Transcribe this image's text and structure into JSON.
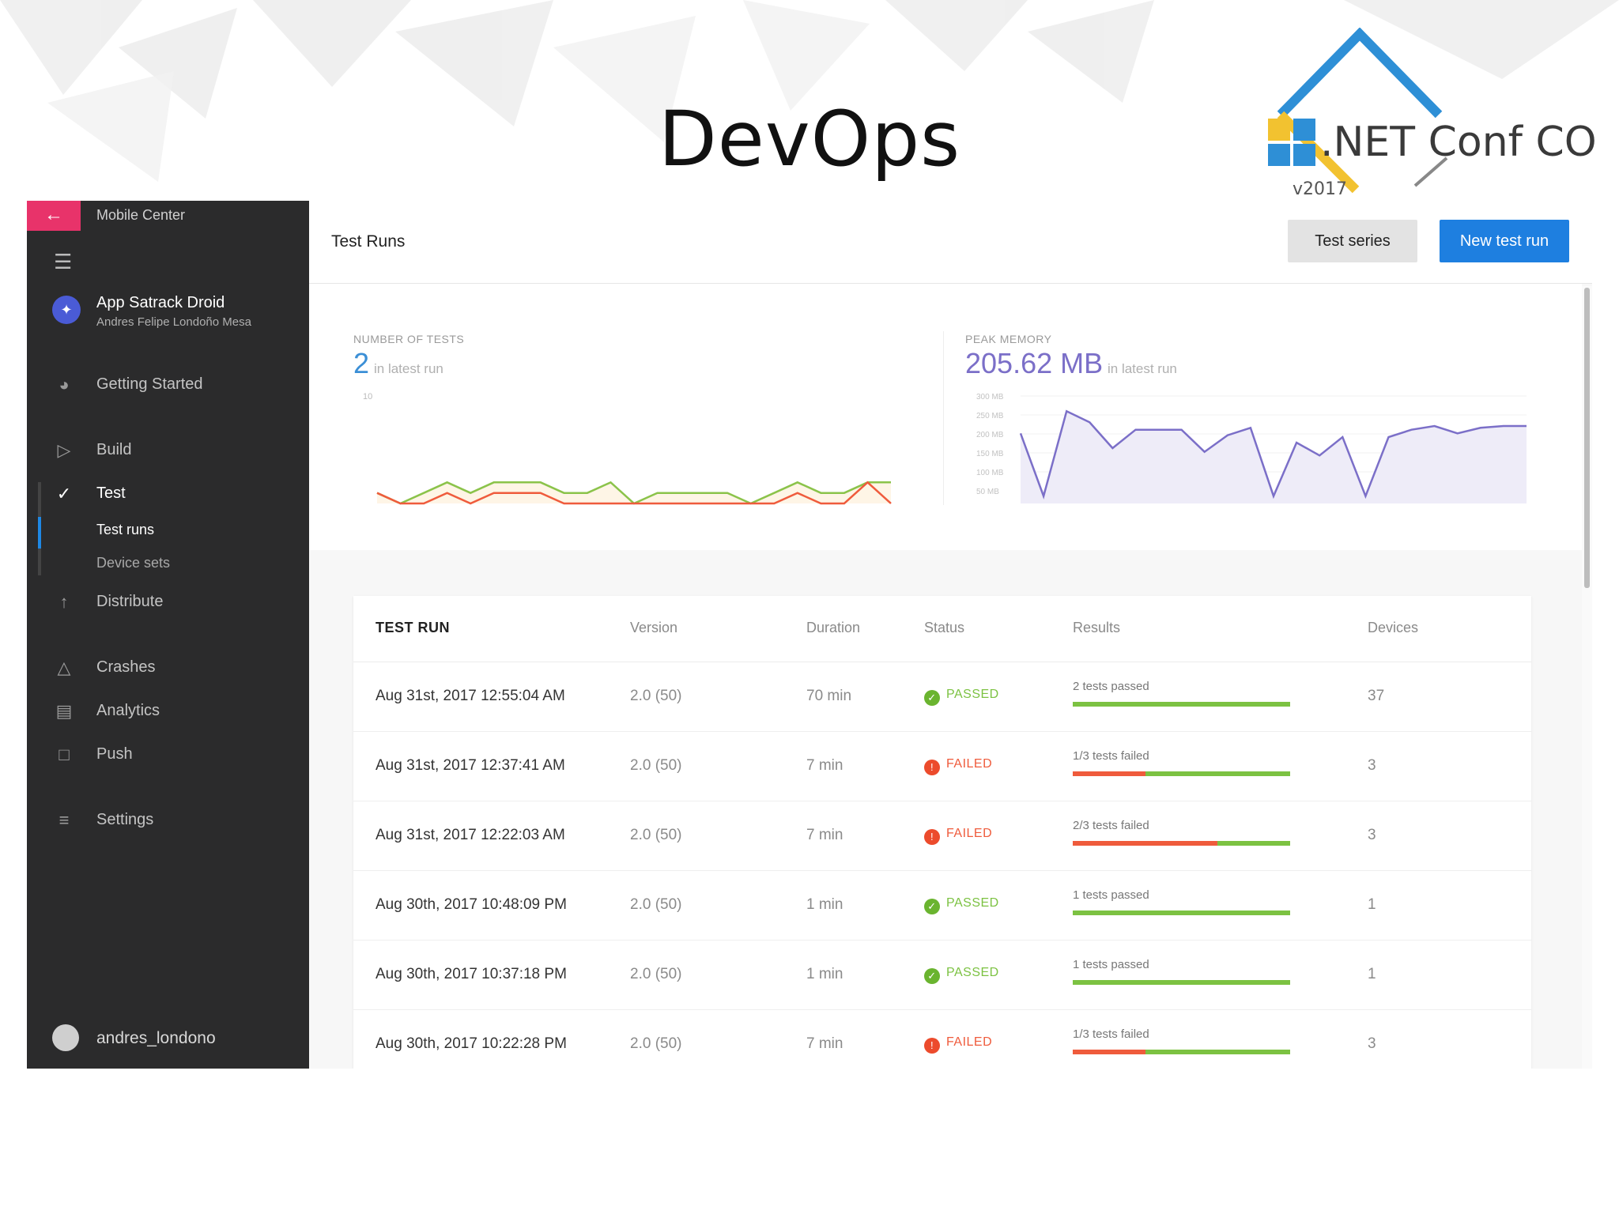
{
  "slide": {
    "title": "DevOps",
    "logo_text": ".NET Conf CO",
    "logo_version": "v2017"
  },
  "sidebar": {
    "back_icon": "arrow-left-icon",
    "brand": "Mobile Center",
    "app_name": "App Satrack Droid",
    "app_owner": "Andres Felipe Londoño Mesa",
    "items": [
      {
        "label": "Getting Started",
        "icon": "speedometer-icon"
      },
      {
        "label": "Build",
        "icon": "play-icon"
      },
      {
        "label": "Test",
        "icon": "check-circle-icon"
      },
      {
        "label": "Distribute",
        "icon": "distribute-icon"
      },
      {
        "label": "Crashes",
        "icon": "warning-icon"
      },
      {
        "label": "Analytics",
        "icon": "bar-chart-icon"
      },
      {
        "label": "Push",
        "icon": "push-icon"
      },
      {
        "label": "Settings",
        "icon": "sliders-icon"
      }
    ],
    "sub_items": [
      "Test runs",
      "Device sets"
    ],
    "user": "andres_londono",
    "accent_color": "#e8336a"
  },
  "header": {
    "title": "Test Runs",
    "series_button": "Test series",
    "new_button": "New test run",
    "primary_color": "#1e7fe0"
  },
  "stats": {
    "tests": {
      "label": "NUMBER OF TESTS",
      "value": "2",
      "sub": "in latest run",
      "color": "#3b8fd6",
      "axis_label": "10"
    },
    "memory": {
      "label": "PEAK MEMORY",
      "value": "205.62 MB",
      "sub": "in latest run",
      "color": "#7b6fc8",
      "axis_labels": [
        "300 MB",
        "250 MB",
        "200 MB",
        "150 MB",
        "100 MB",
        "50 MB"
      ]
    }
  },
  "chart_data": [
    {
      "type": "line",
      "title": "NUMBER OF TESTS",
      "ylim": [
        0,
        10
      ],
      "series": [
        {
          "color": "#8bc34a",
          "values": [
            1,
            0,
            1,
            2,
            1,
            2,
            2,
            2,
            1,
            1,
            2,
            0,
            1,
            1,
            1,
            1,
            0,
            1,
            2,
            1,
            1,
            2,
            2
          ]
        },
        {
          "color": "#ef5b3c",
          "values": [
            1,
            0,
            0,
            1,
            0,
            1,
            1,
            1,
            0,
            0,
            0,
            0,
            0,
            0,
            0,
            0,
            0,
            0,
            1,
            0,
            0,
            2,
            0
          ]
        }
      ]
    },
    {
      "type": "area",
      "title": "PEAK MEMORY",
      "ylim": [
        0,
        300
      ],
      "series": [
        {
          "color": "#7b6fc8",
          "values": [
            190,
            20,
            250,
            220,
            150,
            200,
            200,
            200,
            140,
            185,
            205,
            20,
            165,
            130,
            180,
            20,
            180,
            200,
            210,
            190,
            205,
            210,
            210
          ]
        }
      ]
    }
  ],
  "table": {
    "columns": [
      "TEST RUN",
      "Version",
      "Duration",
      "Status",
      "Results",
      "Devices"
    ],
    "rows": [
      {
        "run": "Aug 31st, 2017 12:55:04 AM",
        "version": "2.0 (50)",
        "duration": "70 min",
        "status": "PASSED",
        "result_text": "2 tests passed",
        "failed_fraction": 0,
        "devices": "37"
      },
      {
        "run": "Aug 31st, 2017 12:37:41 AM",
        "version": "2.0 (50)",
        "duration": "7 min",
        "status": "FAILED",
        "result_text": "1/3 tests failed",
        "failed_fraction": 0.333,
        "devices": "3"
      },
      {
        "run": "Aug 31st, 2017 12:22:03 AM",
        "version": "2.0 (50)",
        "duration": "7 min",
        "status": "FAILED",
        "result_text": "2/3 tests failed",
        "failed_fraction": 0.667,
        "devices": "3"
      },
      {
        "run": "Aug 30th, 2017 10:48:09 PM",
        "version": "2.0 (50)",
        "duration": "1 min",
        "status": "PASSED",
        "result_text": "1 tests passed",
        "failed_fraction": 0,
        "devices": "1"
      },
      {
        "run": "Aug 30th, 2017 10:37:18 PM",
        "version": "2.0 (50)",
        "duration": "1 min",
        "status": "PASSED",
        "result_text": "1 tests passed",
        "failed_fraction": 0,
        "devices": "1"
      },
      {
        "run": "Aug 30th, 2017 10:22:28 PM",
        "version": "2.0 (50)",
        "duration": "7 min",
        "status": "FAILED",
        "result_text": "1/3 tests failed",
        "failed_fraction": 0.333,
        "devices": "3"
      }
    ]
  },
  "chat": {
    "icon": "chat-icon"
  }
}
